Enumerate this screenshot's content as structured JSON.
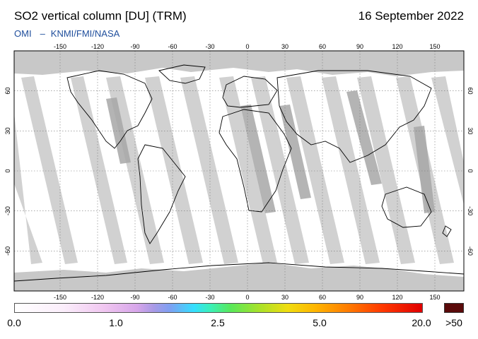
{
  "header": {
    "title": "SO2 vertical column [DU] (TRM)",
    "date": "16 September 2022",
    "credit_instrument": "OMI",
    "credit_dash": "–",
    "credit_agencies": "KNMI/FMI/NASA"
  },
  "map": {
    "lon_ticks": [
      -150,
      -120,
      -90,
      -60,
      -30,
      0,
      30,
      60,
      90,
      120,
      150
    ],
    "lat_ticks": [
      60,
      30,
      0,
      -30,
      -60
    ],
    "colors": {
      "no_data": "#cccccc",
      "orbit_swath": "#b0b0b0",
      "background": "#ffffff"
    }
  },
  "colorbar": {
    "labels": [
      "0.0",
      "1.0",
      "2.5",
      "5.0",
      "20.0"
    ],
    "overflow_label": ">50",
    "overflow_color": "#5a0a0a"
  }
}
